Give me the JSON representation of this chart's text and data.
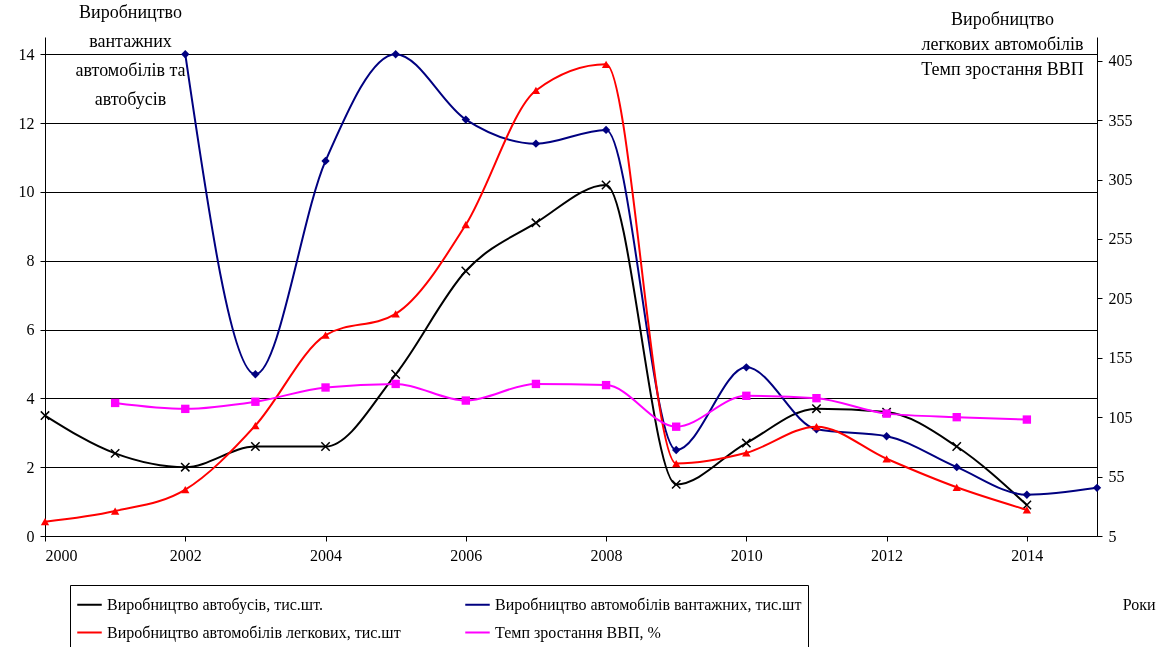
{
  "chart_data": {
    "type": "line",
    "ylabel": "Виробництво\nвантажних\nавтомобілів та\nавтобусів",
    "y2label": "Виробництво\nлегкових автомобілів\nТемп зростання ВВП",
    "xlabel": "Роки",
    "x": [
      2000,
      2001,
      2002,
      2003,
      2004,
      2005,
      2006,
      2007,
      2008,
      2009,
      2010,
      2011,
      2012,
      2013,
      2014
    ],
    "xlim": [
      2000,
      2015
    ],
    "xticks": [
      2000,
      2002,
      2004,
      2006,
      2008,
      2010,
      2012,
      2014
    ],
    "ylim": [
      0,
      14.5
    ],
    "yticks": [
      0,
      2,
      4,
      6,
      8,
      10,
      12,
      14
    ],
    "y2lim": [
      5,
      425
    ],
    "y2ticks": [
      5,
      55,
      105,
      155,
      205,
      255,
      305,
      355,
      405
    ],
    "grid": "y",
    "legend": "bottom",
    "line_style": "solid",
    "series": [
      {
        "name": "Виробництво автобусів, тис.шт.",
        "color": "#000000",
        "marker": "cross",
        "values": [
          3.5,
          2.4,
          2.0,
          2.6,
          2.6,
          4.7,
          7.7,
          9.1,
          10.2,
          1.5,
          2.7,
          3.7,
          3.6,
          2.6,
          0.9
        ]
      },
      {
        "name": "Виробництво автомобілів вантажних, тис.шт",
        "color": "#000080",
        "marker": "diamond",
        "x": [
          2002,
          2003,
          2004,
          2005,
          2006,
          2007,
          2008,
          2009,
          2010,
          2011,
          2012,
          2013,
          2014,
          2015
        ],
        "values": [
          14.0,
          4.7,
          10.9,
          14.0,
          12.1,
          11.4,
          11.8,
          2.5,
          4.9,
          3.1,
          2.9,
          2.0,
          1.2,
          1.4
        ]
      },
      {
        "name": "Виробництво автомобілів легкових, тис.шт",
        "color": "#ff0000",
        "marker": "triangle",
        "axis": "y2",
        "values": [
          17,
          26,
          44,
          98,
          174,
          192,
          267,
          380,
          402,
          66,
          75,
          97,
          70,
          46,
          27
        ]
      },
      {
        "name": "Темп зростання ВВП, %",
        "color": "#ff00ff",
        "marker": "square",
        "axis": "y2",
        "x": [
          2001,
          2002,
          2003,
          2004,
          2005,
          2006,
          2007,
          2008,
          2009,
          2010,
          2011,
          2012,
          2013,
          2014
        ],
        "values": [
          117,
          112,
          118,
          130,
          133,
          119,
          133,
          132,
          97,
          123,
          121,
          108,
          105,
          103
        ]
      }
    ]
  }
}
